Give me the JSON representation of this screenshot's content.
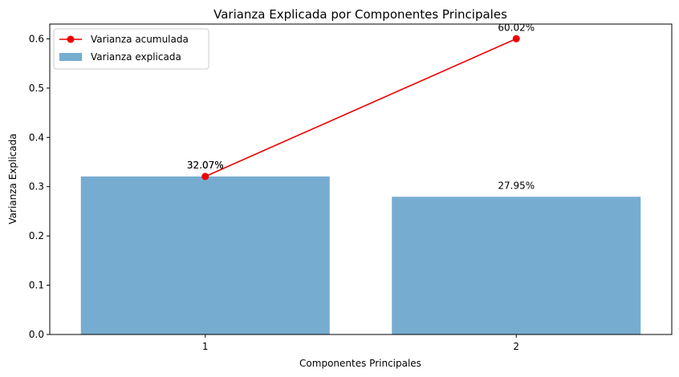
{
  "chart_data": {
    "type": "bar",
    "title": "Varianza Explicada por Componentes Principales",
    "xlabel": "Componentes Principales",
    "ylabel": "Varianza Explicada",
    "categories": [
      "1",
      "2"
    ],
    "ylim": [
      0,
      0.63
    ],
    "yticks": [
      "0.0",
      "0.1",
      "0.2",
      "0.3",
      "0.4",
      "0.5",
      "0.6"
    ],
    "grid": false,
    "legend_position": "top-left",
    "series": [
      {
        "name": "Varianza explicada",
        "type": "bar",
        "color": "#77acd1",
        "values": [
          0.3207,
          0.2795
        ],
        "labels": [
          "32.07%",
          "27.95%"
        ]
      },
      {
        "name": "Varianza acumulada",
        "type": "line",
        "color": "#ee0000",
        "marker": "circle",
        "values": [
          0.3207,
          0.6002
        ],
        "labels": [
          "32.07%",
          "60.02%"
        ]
      }
    ]
  }
}
